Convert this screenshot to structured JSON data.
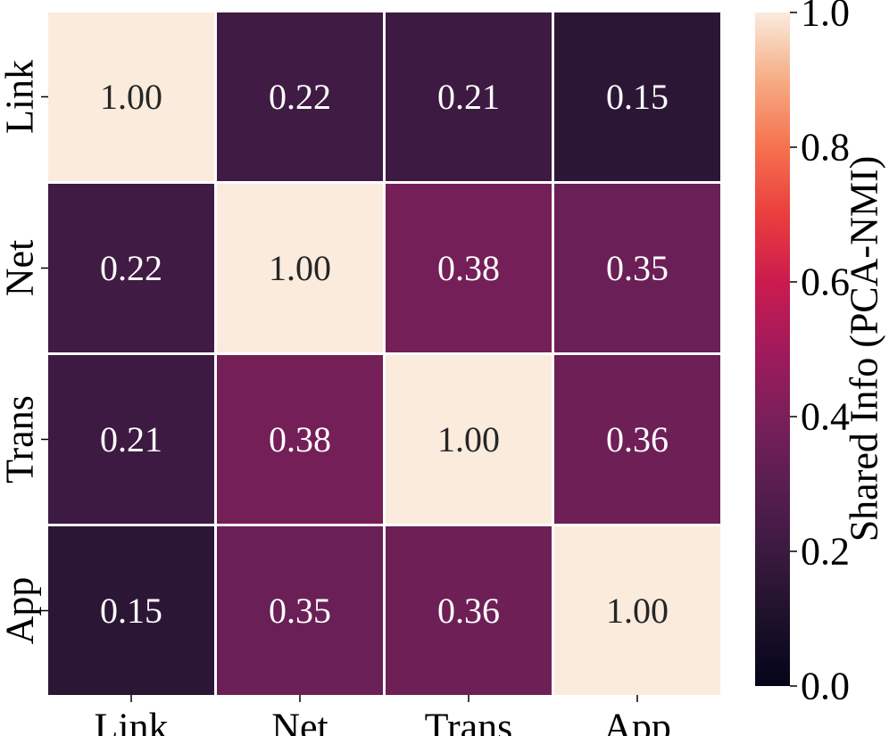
{
  "chart_data": {
    "type": "heatmap",
    "title": "",
    "xlabel": "",
    "ylabel": "",
    "rows": [
      "Link",
      "Net",
      "Trans",
      "App"
    ],
    "columns": [
      "Link",
      "Net",
      "Trans",
      "App"
    ],
    "values": [
      [
        1.0,
        0.22,
        0.21,
        0.15
      ],
      [
        0.22,
        1.0,
        0.38,
        0.35
      ],
      [
        0.21,
        0.38,
        1.0,
        0.36
      ],
      [
        0.15,
        0.35,
        0.36,
        1.0
      ]
    ],
    "cell_labels": [
      [
        "1.00",
        "0.22",
        "0.21",
        "0.15"
      ],
      [
        "0.22",
        "1.00",
        "0.38",
        "0.35"
      ],
      [
        "0.21",
        "0.38",
        "1.00",
        "0.36"
      ],
      [
        "0.15",
        "0.35",
        "0.36",
        "1.00"
      ]
    ],
    "colorbar": {
      "label": "Shared Info (PCA-NMI)",
      "range": [
        0.0,
        1.0
      ],
      "ticks": [
        0.0,
        0.2,
        0.4,
        0.6,
        0.8,
        1.0
      ],
      "tick_labels": [
        "0.0",
        "0.2",
        "0.4",
        "0.6",
        "0.8",
        "1.0"
      ]
    },
    "colormap": "rocket",
    "colors": {
      "high_text": "#262626",
      "low_text": "#ffffff",
      "grid_line": "#ffffff"
    },
    "grid": false,
    "legend": "colorbar-right"
  }
}
